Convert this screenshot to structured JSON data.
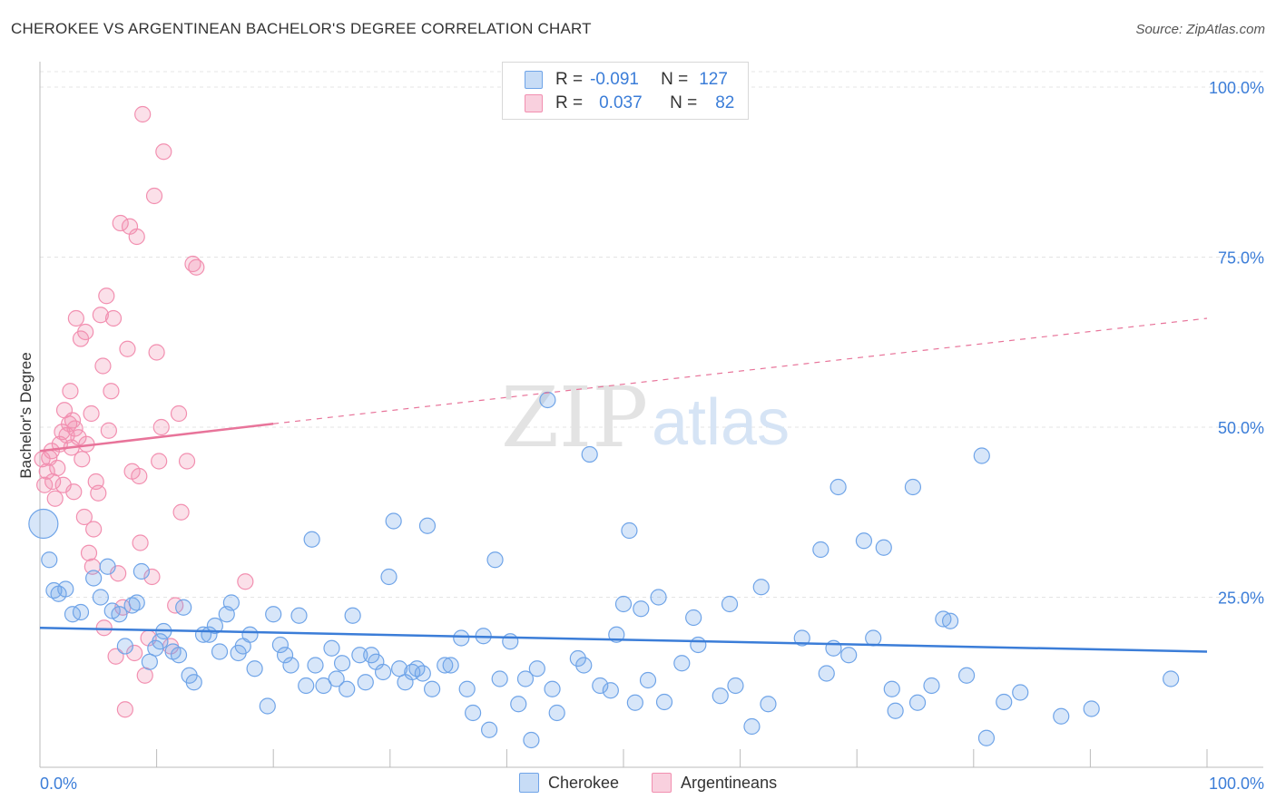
{
  "header": {
    "title": "CHEROKEE VS ARGENTINEAN BACHELOR'S DEGREE CORRELATION CHART",
    "source": "Source: ZipAtlas.com"
  },
  "legend": {
    "rows": [
      {
        "r_label": "R =",
        "r_value": "-0.091",
        "n_label": "N =",
        "n_value": "127",
        "color": "#6fa4e8"
      },
      {
        "r_label": "R =",
        "r_value": "0.037",
        "n_label": "N =",
        "n_value": "82",
        "color": "#f28fb0"
      }
    ]
  },
  "series_legend": [
    "Cherokee",
    "Argentineans"
  ],
  "watermark": {
    "zip": "ZIP",
    "atlas": "atlas"
  },
  "chart_data": {
    "type": "scatter",
    "title": "CHEROKEE VS ARGENTINEAN BACHELOR'S DEGREE CORRELATION CHART",
    "xlabel": "",
    "ylabel": "Bachelor's Degree",
    "xlim": [
      0,
      100
    ],
    "ylim": [
      0,
      100
    ],
    "x_tick_labels": [
      "0.0%",
      "100.0%"
    ],
    "y_tick_labels": [
      "100.0%",
      "75.0%",
      "50.0%",
      "25.0%"
    ],
    "y_ticks": [
      100,
      75,
      50,
      25
    ],
    "grid": true,
    "colors": {
      "Cherokee": "#6fa4e8",
      "Argentineans": "#f28fb0",
      "cherokee_line": "#3b7dd8",
      "argentinean_line": "#e8749a",
      "tick_text": "#3b7dd8"
    },
    "series": [
      {
        "name": "Cherokee",
        "trend": {
          "x": [
            0,
            100
          ],
          "y": [
            20.5,
            17
          ]
        },
        "points": [
          [
            0.3,
            35.8,
            2
          ],
          [
            0.8,
            30.5,
            1
          ],
          [
            1.2,
            26,
            1
          ],
          [
            1.6,
            25.5,
            1
          ],
          [
            2.2,
            26.2,
            1
          ],
          [
            2.8,
            22.5,
            1
          ],
          [
            3.5,
            22.8,
            1
          ],
          [
            4.6,
            27.8,
            1
          ],
          [
            5.2,
            25,
            1
          ],
          [
            5.8,
            29.5,
            1
          ],
          [
            6.2,
            23,
            1
          ],
          [
            6.8,
            22.5,
            1
          ],
          [
            7.3,
            17.8,
            1
          ],
          [
            7.9,
            23.8,
            1
          ],
          [
            8.3,
            24.2,
            1
          ],
          [
            8.7,
            28.8,
            1
          ],
          [
            9.4,
            15.5,
            1
          ],
          [
            9.9,
            17.5,
            1
          ],
          [
            10.3,
            18.5,
            1
          ],
          [
            10.6,
            20,
            1
          ],
          [
            11.4,
            17,
            1
          ],
          [
            11.9,
            16.5,
            1
          ],
          [
            12.3,
            23.5,
            1
          ],
          [
            12.8,
            13.5,
            1
          ],
          [
            13.2,
            12.5,
            1
          ],
          [
            14.0,
            19.5,
            1
          ],
          [
            14.5,
            19.5,
            1
          ],
          [
            15.0,
            20.8,
            1
          ],
          [
            15.4,
            17,
            1
          ],
          [
            16.0,
            22.5,
            1
          ],
          [
            16.4,
            24.2,
            1
          ],
          [
            17.0,
            16.8,
            1
          ],
          [
            17.4,
            17.8,
            1
          ],
          [
            18.0,
            19.5,
            1
          ],
          [
            18.4,
            14.5,
            1
          ],
          [
            19.5,
            9,
            1
          ],
          [
            20.0,
            22.5,
            1
          ],
          [
            20.6,
            18,
            1
          ],
          [
            21.0,
            16.5,
            1
          ],
          [
            21.5,
            15,
            1
          ],
          [
            22.2,
            22.3,
            1
          ],
          [
            22.8,
            12,
            1
          ],
          [
            23.3,
            33.5,
            1
          ],
          [
            23.6,
            15,
            1
          ],
          [
            24.3,
            12,
            1
          ],
          [
            25.0,
            17.5,
            1
          ],
          [
            25.4,
            13,
            1
          ],
          [
            25.9,
            15.3,
            1
          ],
          [
            26.3,
            11.5,
            1
          ],
          [
            26.8,
            22.3,
            1
          ],
          [
            27.4,
            16.5,
            1
          ],
          [
            27.9,
            12.5,
            1
          ],
          [
            28.4,
            16.5,
            1
          ],
          [
            28.8,
            15.5,
            1
          ],
          [
            29.4,
            14,
            1
          ],
          [
            29.9,
            28,
            1
          ],
          [
            30.3,
            36.2,
            1
          ],
          [
            30.8,
            14.5,
            1
          ],
          [
            31.3,
            12.5,
            1
          ],
          [
            31.9,
            14,
            1
          ],
          [
            32.3,
            14.5,
            1
          ],
          [
            32.8,
            13.8,
            1
          ],
          [
            33.2,
            35.5,
            1
          ],
          [
            33.6,
            11.5,
            1
          ],
          [
            34.7,
            15,
            1
          ],
          [
            35.2,
            15,
            1
          ],
          [
            36.1,
            19,
            1
          ],
          [
            36.6,
            11.5,
            1
          ],
          [
            37.1,
            8,
            1
          ],
          [
            38.0,
            19.3,
            1
          ],
          [
            38.5,
            5.5,
            1
          ],
          [
            39.0,
            30.5,
            1
          ],
          [
            39.4,
            13,
            1
          ],
          [
            40.3,
            18.5,
            1
          ],
          [
            41.0,
            9.3,
            1
          ],
          [
            41.6,
            13,
            1
          ],
          [
            42.1,
            4,
            1
          ],
          [
            42.6,
            14.5,
            1
          ],
          [
            43.5,
            54,
            1
          ],
          [
            43.9,
            11.5,
            1
          ],
          [
            44.3,
            8,
            1
          ],
          [
            46.1,
            16,
            1
          ],
          [
            46.6,
            15,
            1
          ],
          [
            47.1,
            46,
            1
          ],
          [
            48.0,
            12,
            1
          ],
          [
            48.9,
            11.3,
            1
          ],
          [
            49.4,
            19.5,
            1
          ],
          [
            50.0,
            24,
            1
          ],
          [
            50.5,
            34.8,
            1
          ],
          [
            51.0,
            9.5,
            1
          ],
          [
            51.5,
            23.3,
            1
          ],
          [
            52.1,
            12.8,
            1
          ],
          [
            53.0,
            25,
            1
          ],
          [
            53.5,
            9.6,
            1
          ],
          [
            55.0,
            15.3,
            1
          ],
          [
            56.0,
            22,
            1
          ],
          [
            56.4,
            18,
            1
          ],
          [
            58.3,
            10.5,
            1
          ],
          [
            59.1,
            24,
            1
          ],
          [
            59.6,
            12,
            1
          ],
          [
            61.0,
            6,
            1
          ],
          [
            61.8,
            26.5,
            1
          ],
          [
            62.4,
            9.3,
            1
          ],
          [
            65.3,
            19,
            1
          ],
          [
            66.9,
            32,
            1
          ],
          [
            67.4,
            13.8,
            1
          ],
          [
            68.0,
            17.5,
            1
          ],
          [
            68.4,
            41.2,
            1
          ],
          [
            69.3,
            16.5,
            1
          ],
          [
            70.6,
            33.3,
            1
          ],
          [
            71.4,
            19,
            1
          ],
          [
            72.3,
            32.3,
            1
          ],
          [
            73.0,
            11.5,
            1
          ],
          [
            73.3,
            8.3,
            1
          ],
          [
            74.8,
            41.2,
            1
          ],
          [
            75.2,
            9.5,
            1
          ],
          [
            76.4,
            12,
            1
          ],
          [
            77.4,
            21.8,
            1
          ],
          [
            78.0,
            21.5,
            1
          ],
          [
            79.4,
            13.5,
            1
          ],
          [
            80.7,
            45.8,
            1
          ],
          [
            81.1,
            4.3,
            1
          ],
          [
            82.6,
            9.6,
            1
          ],
          [
            84.0,
            11,
            1
          ],
          [
            87.5,
            7.5,
            1
          ],
          [
            90.1,
            8.6,
            1
          ],
          [
            96.9,
            13,
            1
          ]
        ]
      },
      {
        "name": "Argentineans",
        "trend": {
          "x": [
            0,
            20
          ],
          "y": [
            46.5,
            50.5
          ],
          "dashed_to": [
            100,
            66
          ]
        },
        "points": [
          [
            0.2,
            45.3,
            1
          ],
          [
            0.4,
            41.5,
            1
          ],
          [
            0.6,
            43.5,
            1
          ],
          [
            0.8,
            45.5,
            1
          ],
          [
            1.0,
            46.5,
            1
          ],
          [
            1.1,
            42,
            1
          ],
          [
            1.3,
            39.5,
            1
          ],
          [
            1.5,
            44,
            1
          ],
          [
            1.7,
            47.5,
            1
          ],
          [
            1.9,
            49.3,
            1
          ],
          [
            2.0,
            41.5,
            1
          ],
          [
            2.1,
            52.5,
            1
          ],
          [
            2.3,
            48.8,
            1
          ],
          [
            2.5,
            50.5,
            1
          ],
          [
            2.6,
            55.3,
            1
          ],
          [
            2.7,
            47,
            1
          ],
          [
            2.8,
            51,
            1
          ],
          [
            2.9,
            40.5,
            1
          ],
          [
            3.0,
            49.8,
            1
          ],
          [
            3.1,
            66,
            1
          ],
          [
            3.3,
            48.5,
            1
          ],
          [
            3.5,
            63,
            1
          ],
          [
            3.6,
            45.3,
            1
          ],
          [
            3.8,
            36.8,
            1
          ],
          [
            3.9,
            64,
            1
          ],
          [
            4.0,
            47.5,
            1
          ],
          [
            4.2,
            31.5,
            1
          ],
          [
            4.4,
            52,
            1
          ],
          [
            4.5,
            29.5,
            1
          ],
          [
            4.6,
            35,
            1
          ],
          [
            4.8,
            42,
            1
          ],
          [
            5.0,
            40.3,
            1
          ],
          [
            5.2,
            66.5,
            1
          ],
          [
            5.4,
            59,
            1
          ],
          [
            5.5,
            20.5,
            1
          ],
          [
            5.7,
            69.3,
            1
          ],
          [
            5.9,
            49.5,
            1
          ],
          [
            6.1,
            55.3,
            1
          ],
          [
            6.3,
            66,
            1
          ],
          [
            6.5,
            16.3,
            1
          ],
          [
            6.7,
            28.5,
            1
          ],
          [
            6.9,
            80,
            1
          ],
          [
            7.1,
            23.5,
            1
          ],
          [
            7.3,
            8.5,
            1
          ],
          [
            7.5,
            61.5,
            1
          ],
          [
            7.7,
            79.5,
            1
          ],
          [
            7.9,
            43.5,
            1
          ],
          [
            8.1,
            16.8,
            1
          ],
          [
            8.3,
            78,
            1
          ],
          [
            8.5,
            42.8,
            1
          ],
          [
            8.6,
            33,
            1
          ],
          [
            8.8,
            96,
            1
          ],
          [
            9.0,
            13.5,
            1
          ],
          [
            9.3,
            19,
            1
          ],
          [
            9.6,
            28,
            1
          ],
          [
            9.8,
            84,
            1
          ],
          [
            10.0,
            61,
            1
          ],
          [
            10.2,
            45,
            1
          ],
          [
            10.4,
            50,
            1
          ],
          [
            10.6,
            90.5,
            1
          ],
          [
            11.2,
            17.8,
            1
          ],
          [
            11.6,
            23.8,
            1
          ],
          [
            11.9,
            52,
            1
          ],
          [
            12.1,
            37.5,
            1
          ],
          [
            12.6,
            45,
            1
          ],
          [
            13.1,
            74,
            1
          ],
          [
            13.4,
            73.5,
            1
          ],
          [
            17.6,
            27.3,
            1
          ]
        ]
      }
    ]
  }
}
